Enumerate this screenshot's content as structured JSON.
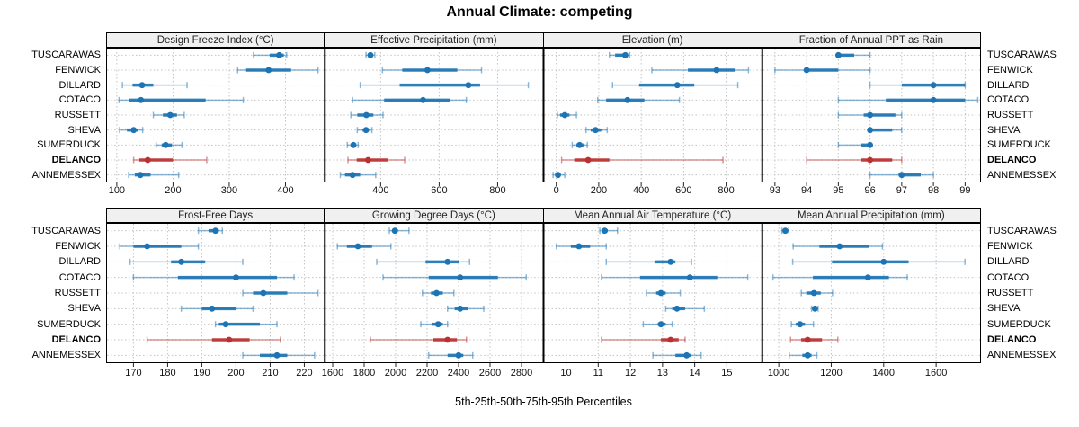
{
  "title": "Annual Climate: competing",
  "xlabel": "5th-25th-50th-75th-95th Percentiles",
  "percentile_labels": [
    "5th",
    "25th",
    "50th",
    "75th",
    "95th"
  ],
  "sites": [
    "TUSCARAWAS",
    "FENWICK",
    "DILLARD",
    "COTACO",
    "RUSSETT",
    "SHEVA",
    "SUMERDUCK",
    "DELANCO",
    "ANNEMESSEX"
  ],
  "highlight_site": "DELANCO",
  "colors": {
    "series": "#1c74b4",
    "highlight": "#bb3030",
    "strip_bg": "#f0f0f0",
    "panel_border": "#000000",
    "grid": "#c3c3c3",
    "text": "#000000"
  },
  "chart_data": [
    {
      "type": "interval",
      "title": "Design Freeze Index (°C)",
      "row": 0,
      "col": 0,
      "xlim": [
        81,
        470
      ],
      "ticks": [
        100,
        200,
        300,
        400
      ],
      "values": [
        [
          343,
          372,
          389,
          397,
          402
        ],
        [
          315,
          330,
          370,
          410,
          458
        ],
        [
          110,
          128,
          145,
          165,
          225
        ],
        [
          104,
          122,
          143,
          258,
          325
        ],
        [
          165,
          182,
          195,
          207,
          220
        ],
        [
          105,
          118,
          130,
          138,
          146
        ],
        [
          170,
          180,
          187,
          198,
          216
        ],
        [
          130,
          140,
          155,
          200,
          260
        ],
        [
          121,
          132,
          142,
          160,
          210
        ]
      ]
    },
    {
      "type": "interval",
      "title": "Effective Precipitation (mm)",
      "row": 0,
      "col": 1,
      "xlim": [
        209,
        957
      ],
      "ticks": [
        400,
        600,
        800
      ],
      "values": [
        [
          350,
          358,
          365,
          372,
          380
        ],
        [
          406,
          474,
          560,
          662,
          745
        ],
        [
          330,
          465,
          700,
          740,
          905
        ],
        [
          304,
          412,
          545,
          637,
          693
        ],
        [
          298,
          320,
          351,
          375,
          408
        ],
        [
          320,
          338,
          350,
          360,
          370
        ],
        [
          286,
          297,
          307,
          315,
          323
        ],
        [
          288,
          318,
          357,
          425,
          482
        ],
        [
          262,
          278,
          304,
          330,
          383
        ]
      ]
    },
    {
      "type": "interval",
      "title": "Elevation (m)",
      "row": 0,
      "col": 2,
      "xlim": [
        -60,
        970
      ],
      "ticks": [
        0,
        200,
        400,
        600,
        800
      ],
      "values": [
        [
          250,
          277,
          325,
          338,
          346
        ],
        [
          450,
          620,
          755,
          840,
          905
        ],
        [
          265,
          390,
          570,
          650,
          855
        ],
        [
          195,
          235,
          335,
          415,
          580
        ],
        [
          5,
          18,
          40,
          62,
          95
        ],
        [
          140,
          162,
          185,
          212,
          240
        ],
        [
          75,
          95,
          110,
          128,
          146
        ],
        [
          25,
          85,
          150,
          250,
          785
        ],
        [
          -15,
          0,
          8,
          20,
          40
        ]
      ]
    },
    {
      "type": "interval",
      "title": "Fraction of Annual PPT as Rain",
      "row": 0,
      "col": 3,
      "xlim": [
        92.6,
        99.5
      ],
      "ticks": [
        93,
        94,
        95,
        96,
        97,
        98,
        99
      ],
      "values": [
        [
          95,
          95,
          95,
          95.5,
          96
        ],
        [
          93,
          94,
          94,
          95,
          96
        ],
        [
          96,
          97,
          98,
          99,
          99
        ],
        [
          95,
          96.5,
          98,
          99,
          99.4
        ],
        [
          95,
          95.8,
          96,
          96.8,
          97
        ],
        [
          96,
          96,
          96,
          96.7,
          97
        ],
        [
          95,
          95.7,
          96,
          96,
          96
        ],
        [
          94,
          95.7,
          96,
          96.7,
          97
        ],
        [
          96,
          96.9,
          97,
          97.6,
          98
        ]
      ]
    },
    {
      "type": "interval",
      "title": "Frost-Free Days",
      "row": 1,
      "col": 0,
      "xlim": [
        162,
        226
      ],
      "ticks": [
        170,
        180,
        190,
        200,
        210,
        220
      ],
      "values": [
        [
          189,
          192,
          194,
          195,
          196
        ],
        [
          166,
          170,
          174,
          184,
          189
        ],
        [
          169,
          181,
          184,
          191,
          202
        ],
        [
          170,
          183,
          200,
          212,
          217
        ],
        [
          202,
          205,
          208,
          215,
          224
        ],
        [
          184,
          190,
          193,
          200,
          205
        ],
        [
          194,
          195,
          197,
          207,
          212
        ],
        [
          174,
          193,
          198,
          204,
          213
        ],
        [
          202,
          207,
          212,
          215,
          223
        ]
      ]
    },
    {
      "type": "interval",
      "title": "Growing Degree Days (°C)",
      "row": 1,
      "col": 1,
      "xlim": [
        1550,
        2940
      ],
      "ticks": [
        1600,
        1800,
        2000,
        2200,
        2400,
        2600,
        2800
      ],
      "values": [
        [
          1960,
          1978,
          1995,
          2015,
          2085
        ],
        [
          1630,
          1690,
          1760,
          1850,
          1970
        ],
        [
          1880,
          2190,
          2330,
          2400,
          2470
        ],
        [
          1920,
          2210,
          2410,
          2650,
          2830
        ],
        [
          2170,
          2225,
          2260,
          2300,
          2370
        ],
        [
          2330,
          2375,
          2410,
          2460,
          2560
        ],
        [
          2160,
          2230,
          2270,
          2300,
          2330
        ],
        [
          1840,
          2240,
          2330,
          2390,
          2450
        ],
        [
          2210,
          2330,
          2400,
          2430,
          2490
        ]
      ]
    },
    {
      "type": "interval",
      "title": "Mean Annual Air Temperature (°C)",
      "row": 1,
      "col": 2,
      "xlim": [
        9.3,
        16.1
      ],
      "ticks": [
        10,
        11,
        12,
        13,
        14,
        15
      ],
      "values": [
        [
          11.05,
          11.1,
          11.2,
          11.3,
          11.6
        ],
        [
          9.7,
          10.15,
          10.4,
          10.75,
          11.25
        ],
        [
          11.25,
          12.75,
          13.25,
          13.4,
          13.9
        ],
        [
          11.1,
          12.3,
          13.85,
          14.7,
          15.65
        ],
        [
          12.5,
          12.8,
          12.95,
          13.1,
          13.55
        ],
        [
          13.1,
          13.3,
          13.45,
          13.7,
          14.3
        ],
        [
          12.4,
          12.85,
          12.95,
          13.1,
          13.3
        ],
        [
          11.1,
          12.95,
          13.25,
          13.5,
          13.7
        ],
        [
          12.7,
          13.4,
          13.75,
          13.9,
          14.2
        ]
      ]
    },
    {
      "type": "interval",
      "title": "Mean Annual Precipitation (mm)",
      "row": 1,
      "col": 3,
      "xlim": [
        937,
        1771
      ],
      "ticks": [
        1000,
        1200,
        1400,
        1600
      ],
      "values": [
        [
          1012,
          1020,
          1025,
          1030,
          1038
        ],
        [
          1055,
          1155,
          1232,
          1345,
          1395
        ],
        [
          1053,
          1203,
          1400,
          1495,
          1710
        ],
        [
          978,
          1130,
          1340,
          1420,
          1490
        ],
        [
          1086,
          1105,
          1134,
          1160,
          1205
        ],
        [
          1125,
          1132,
          1138,
          1144,
          1150
        ],
        [
          1048,
          1065,
          1081,
          1100,
          1132
        ],
        [
          1045,
          1085,
          1110,
          1165,
          1225
        ],
        [
          1040,
          1090,
          1110,
          1125,
          1145
        ]
      ]
    }
  ]
}
